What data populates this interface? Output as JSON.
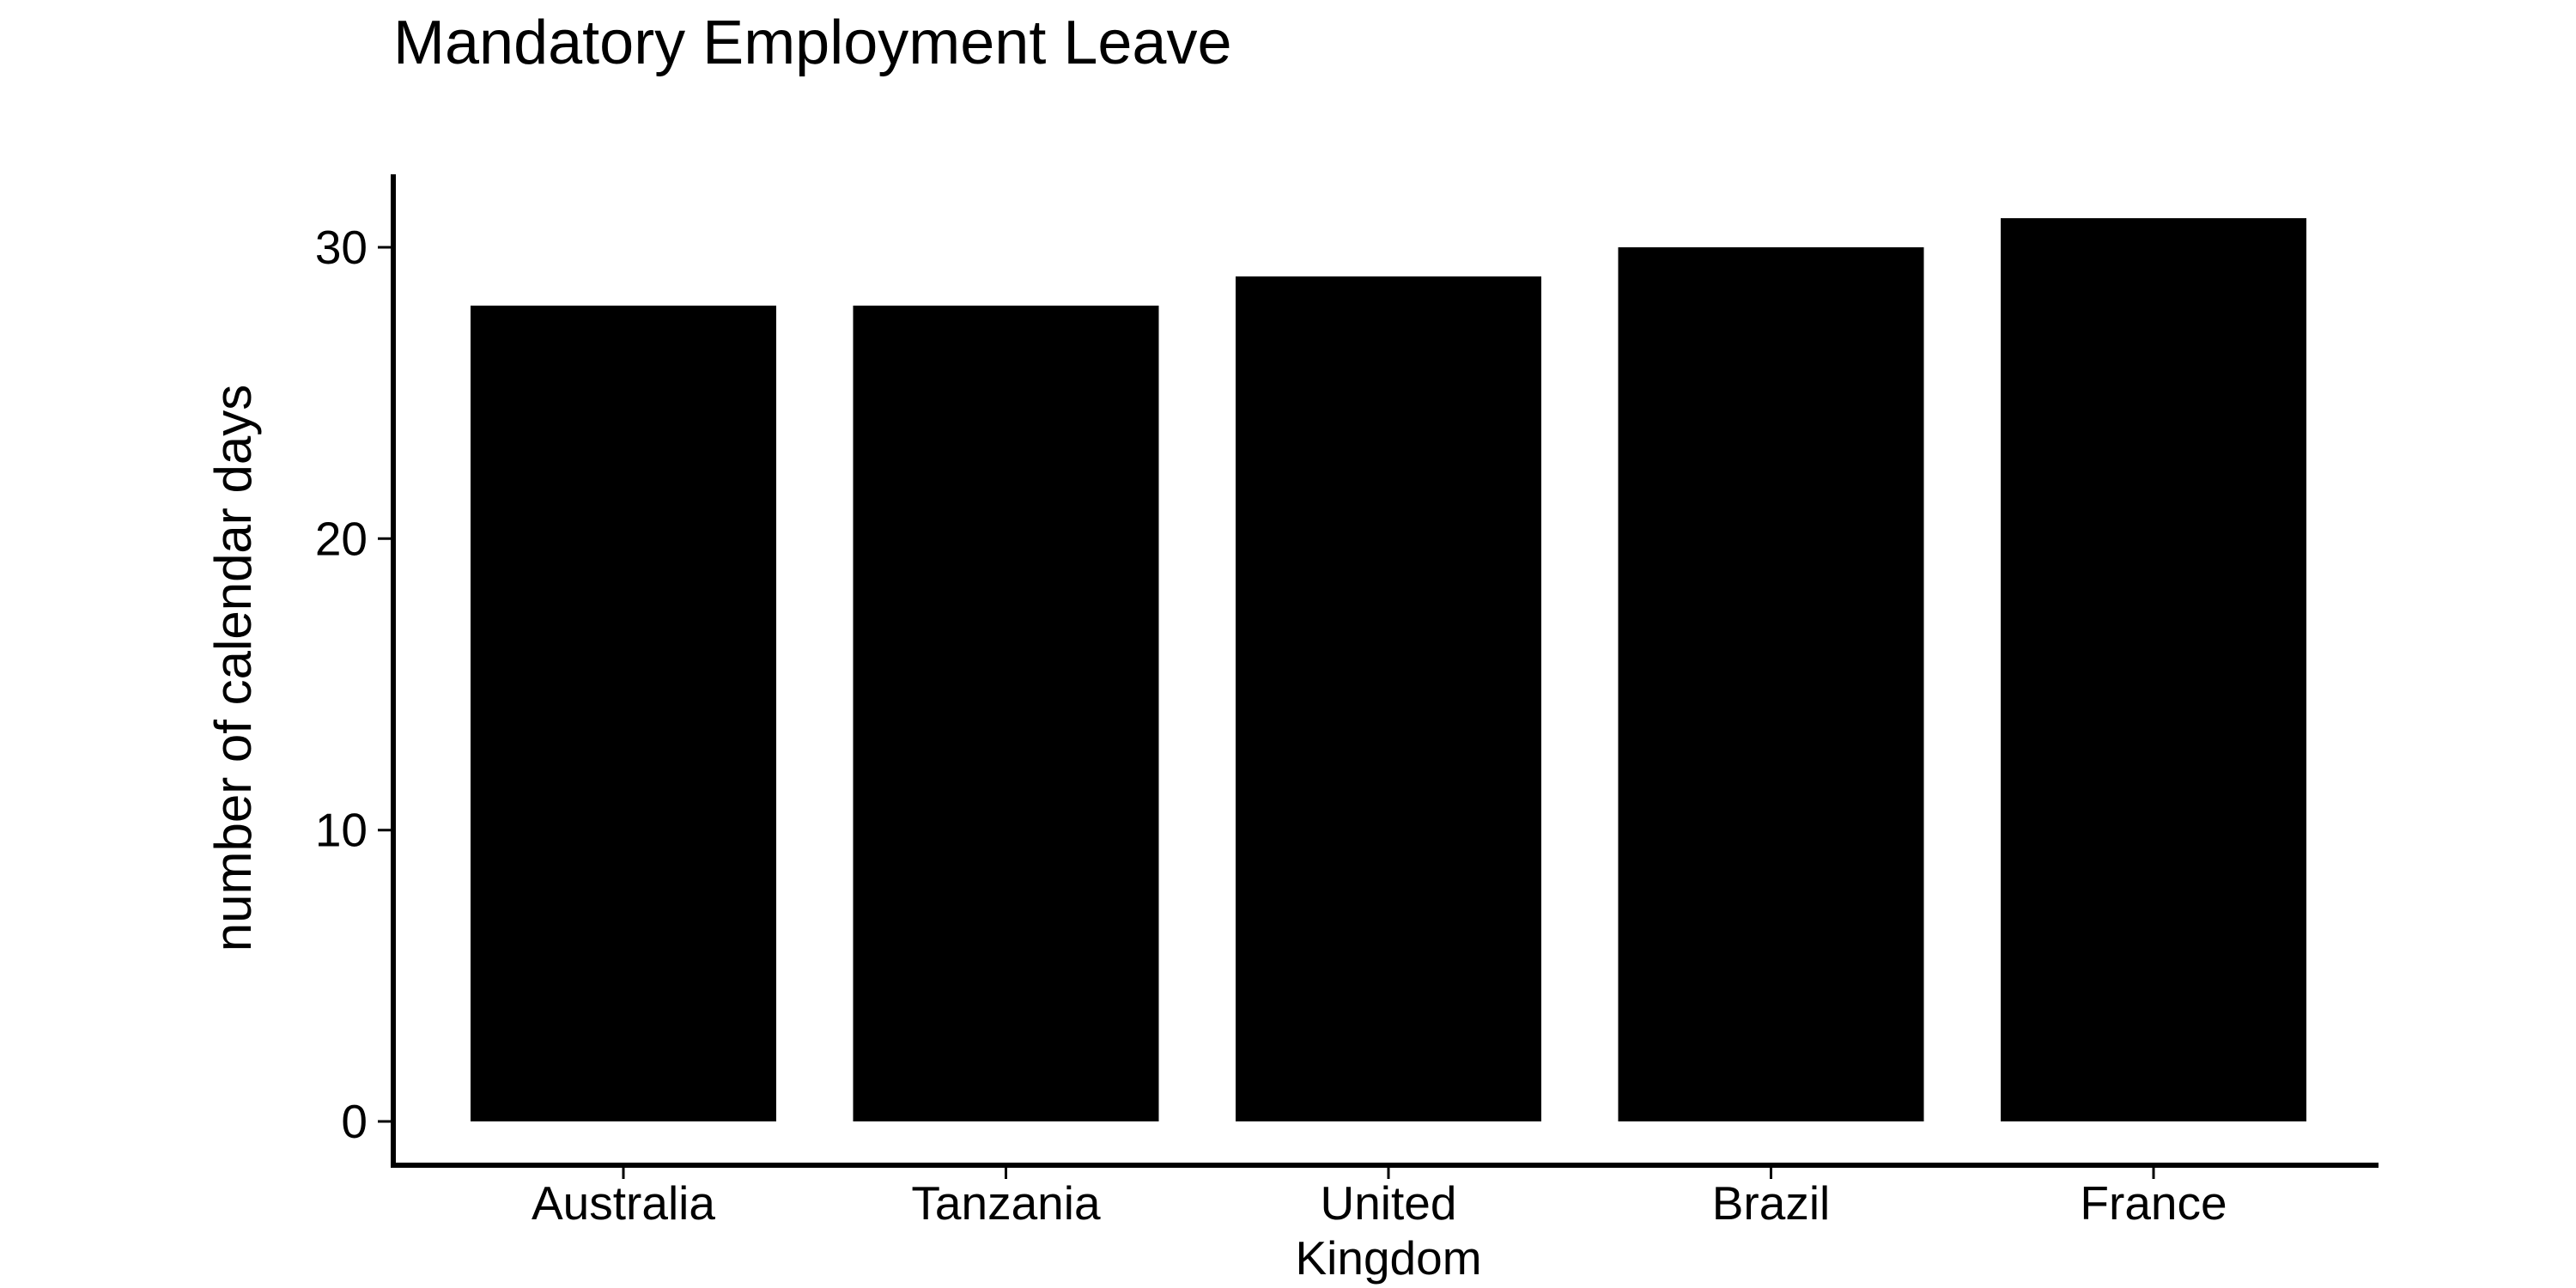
{
  "chart_data": {
    "type": "bar",
    "title": "Mandatory Employment Leave",
    "xlabel": "",
    "ylabel": "number of calendar days",
    "categories": [
      "Australia",
      "Tanzania",
      "United Kingdom",
      "Brazil",
      "France"
    ],
    "category_lines": [
      [
        "Australia"
      ],
      [
        "Tanzania"
      ],
      [
        "United",
        "Kingdom"
      ],
      [
        "Brazil"
      ],
      [
        "France"
      ]
    ],
    "values": [
      28,
      28,
      29,
      30,
      31
    ],
    "ylim": [
      0,
      32.5
    ],
    "yticks": [
      0,
      10,
      20,
      30
    ],
    "grid": false,
    "legend": "none",
    "bar_color": "#000000",
    "axis_color": "#000000"
  }
}
